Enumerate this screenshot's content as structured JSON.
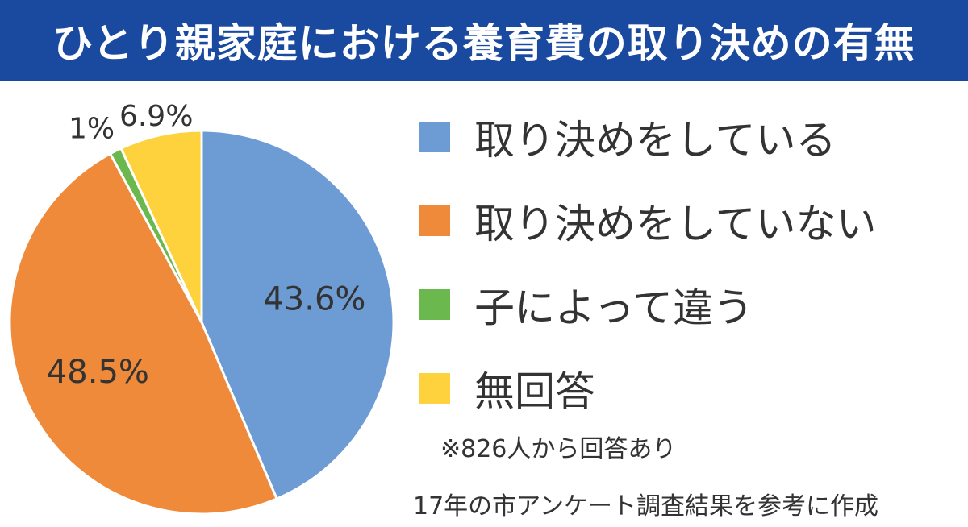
{
  "chart_data": {
    "type": "pie",
    "title": "ひとり親家庭における養育費の取り決めの有無",
    "categories": [
      "取り決めをしている",
      "取り決めをしていない",
      "子によって違う",
      "無回答"
    ],
    "values": [
      43.6,
      48.5,
      1,
      6.9
    ],
    "data_labels": [
      "43.6%",
      "48.5%",
      "1%",
      "6.9%"
    ],
    "colors": [
      "#6d9bd3",
      "#ee8a3a",
      "#6ab84e",
      "#fdd23c"
    ],
    "start": "12 o'clock, clockwise",
    "legend": "right"
  },
  "header": {
    "title": "ひとり親家庭における養育費の取り決めの有無",
    "background_color": "#1a4aa0"
  },
  "notes": {
    "respondents": "※826人から回答あり",
    "source": "17年の市アンケート調査結果を参考に作成"
  }
}
